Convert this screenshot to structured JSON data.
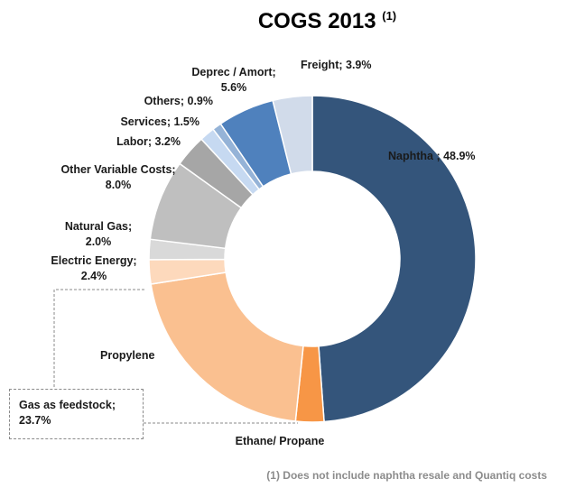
{
  "chart_data": {
    "type": "pie",
    "title": "COGS 2013",
    "title_note_marker": "(1)",
    "donut": true,
    "slices": [
      {
        "label": "Naphtha",
        "label_text": "Naphtha ; 48.9%",
        "value": 48.9,
        "color": "#34557b"
      },
      {
        "label": "Ethane/ Propane",
        "label_text": "Ethane/ Propane",
        "value": 2.8,
        "color": "#f79646"
      },
      {
        "label": "Propylene",
        "label_text": "Propylene",
        "value": 20.9,
        "color": "#fac090"
      },
      {
        "label": "Electric Energy",
        "label_text": "Electric Energy; 2.4%",
        "value": 2.4,
        "color": "#fdd9bc"
      },
      {
        "label": "Natural Gas",
        "label_text": "Natural Gas; 2.0%",
        "value": 2.0,
        "color": "#d9d9d9"
      },
      {
        "label": "Other Variable Costs",
        "label_text": "Other Variable Costs; 8.0%",
        "value": 8.0,
        "color": "#bfbfbf"
      },
      {
        "label": "Labor",
        "label_text": "Labor; 3.2%",
        "value": 3.2,
        "color": "#a6a6a6"
      },
      {
        "label": "Services",
        "label_text": "Services; 1.5%",
        "value": 1.5,
        "color": "#c6d9f1"
      },
      {
        "label": "Others",
        "label_text": "Others; 0.9%",
        "value": 0.9,
        "color": "#95b3d7"
      },
      {
        "label": "Deprec / Amort",
        "label_text": "Deprec / Amort; 5.6%",
        "value": 5.6,
        "color": "#4f81bd"
      },
      {
        "label": "Freight",
        "label_text": "Freight; 3.9%",
        "value": 3.9,
        "color": "#d1dbea"
      }
    ],
    "group_annotation": {
      "text": "Gas as feedstock; 23.7%",
      "members": [
        "Ethane/ Propane",
        "Propylene"
      ]
    },
    "footnote": "(1) Does not include naphtha resale  and Quantiq costs"
  }
}
